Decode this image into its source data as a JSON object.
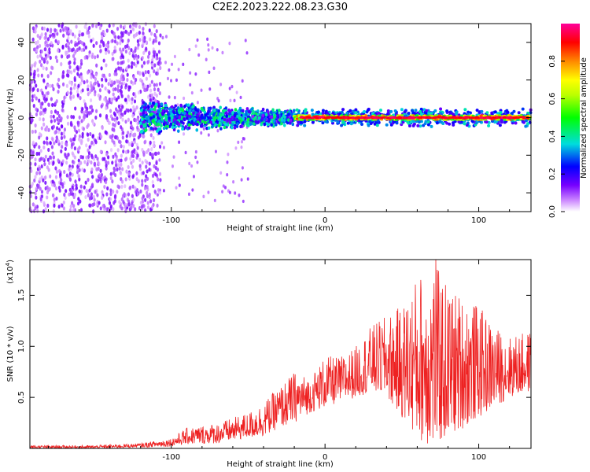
{
  "title": "C2E2.2023.222.08.23.G30",
  "colors": {
    "snr_line": "#ee2222",
    "axis": "#000000"
  },
  "chart_data": [
    {
      "type": "heatmap",
      "xlabel": "Height of straight line (km)",
      "ylabel": "Frequency (Hz)",
      "xlim": [
        -192,
        134
      ],
      "ylim": [
        -50,
        50
      ],
      "x_ticks": [
        -100,
        0,
        100
      ],
      "y_ticks": [
        -40,
        -20,
        0,
        20,
        40
      ],
      "colorbar": {
        "label": "Normalized spectral amplitude",
        "range": [
          0,
          1
        ],
        "ticks": [
          "0.0",
          "0.2",
          "0.4",
          "0.6",
          "0.8"
        ],
        "colormap": [
          "#ffffff",
          "#7700ff",
          "#0000ff",
          "#00dddd",
          "#00ff00",
          "#ffff00",
          "#ff8800",
          "#ff0000",
          "#ff00aa"
        ]
      },
      "regions": [
        {
          "x_range": [
            -192,
            -110
          ],
          "freq_spread": 50,
          "amplitude": [
            0.02,
            0.15
          ],
          "description_level": "noise"
        },
        {
          "x_range": [
            -110,
            -20
          ],
          "freq_spread": 8,
          "amplitude": [
            0.1,
            0.5
          ]
        },
        {
          "x_range": [
            -20,
            134
          ],
          "freq_spread": 2,
          "amplitude": [
            0.5,
            1.0
          ]
        }
      ]
    },
    {
      "type": "line",
      "xlabel": "Height of straight line (km)",
      "ylabel": "SNR (10 * v/v)",
      "y_multiplier": "(x10",
      "y_multiplier_exp": "4",
      "xlim": [
        -192,
        134
      ],
      "ylim": [
        0,
        1.85
      ],
      "x_ticks": [
        -100,
        0,
        100
      ],
      "y_ticks": [
        "0.5",
        "1.0",
        "1.5"
      ],
      "envelope": {
        "x": [
          -192,
          -150,
          -120,
          -100,
          -90,
          -70,
          -50,
          -40,
          -30,
          -20,
          -10,
          0,
          10,
          20,
          30,
          40,
          50,
          60,
          70,
          80,
          90,
          100,
          110,
          120,
          134
        ],
        "min": [
          0.0,
          0.0,
          0.01,
          0.02,
          0.04,
          0.05,
          0.1,
          0.12,
          0.2,
          0.25,
          0.35,
          0.4,
          0.45,
          0.5,
          0.55,
          0.5,
          0.3,
          0.1,
          0.0,
          0.1,
          0.2,
          0.3,
          0.4,
          0.5,
          0.55
        ],
        "max": [
          0.03,
          0.03,
          0.05,
          0.1,
          0.2,
          0.25,
          0.35,
          0.45,
          0.6,
          0.75,
          0.7,
          0.9,
          0.9,
          1.0,
          1.2,
          1.3,
          1.4,
          1.7,
          1.85,
          1.6,
          1.5,
          1.4,
          1.2,
          1.1,
          1.15
        ]
      },
      "peak": {
        "x": 72,
        "y": 1.85
      }
    }
  ]
}
